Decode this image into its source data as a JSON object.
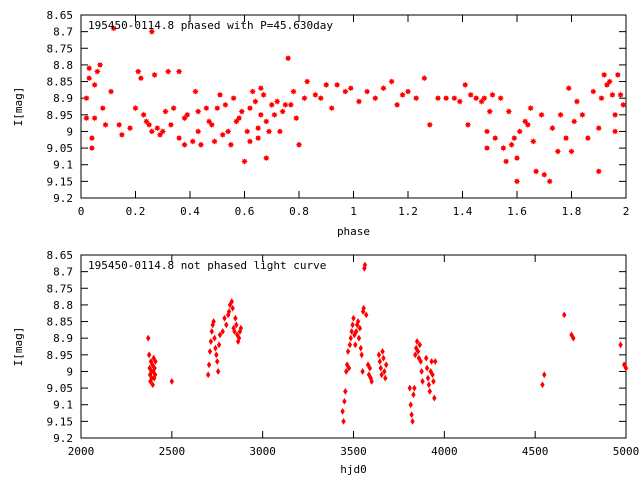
{
  "chart_data": [
    {
      "type": "scatter",
      "title": "195450-0114.8 phased with P=45.630day",
      "xlabel": "phase",
      "ylabel": "I[mag]",
      "xlim": [
        0,
        2
      ],
      "ylim": [
        8.65,
        9.2
      ],
      "y_inverted": true,
      "grid": false,
      "marker": "star",
      "color": "#ff0000",
      "xticks": [
        "0",
        "0.2",
        "0.4",
        "0.6",
        "0.8",
        "1",
        "1.2",
        "1.4",
        "1.6",
        "1.8",
        "2"
      ],
      "xtick_values": [
        0,
        0.2,
        0.4,
        0.6,
        0.8,
        1,
        1.2,
        1.4,
        1.6,
        1.8,
        2
      ],
      "yticks": [
        "8.65",
        "8.7",
        "8.75",
        "8.8",
        "8.85",
        "8.9",
        "8.95",
        "9",
        "9.05",
        "9.1",
        "9.15",
        "9.2"
      ],
      "ytick_values": [
        8.65,
        8.7,
        8.75,
        8.8,
        8.85,
        8.9,
        8.95,
        9.0,
        9.05,
        9.1,
        9.15,
        9.2
      ],
      "points": [
        [
          0.03,
          8.81
        ],
        [
          0.03,
          8.84
        ],
        [
          0.02,
          8.9
        ],
        [
          0.02,
          8.96
        ],
        [
          0.04,
          9.02
        ],
        [
          0.04,
          9.05
        ],
        [
          0.05,
          8.86
        ],
        [
          0.05,
          8.96
        ],
        [
          0.06,
          8.82
        ],
        [
          0.07,
          8.8
        ],
        [
          0.08,
          8.93
        ],
        [
          0.09,
          8.98
        ],
        [
          0.11,
          8.88
        ],
        [
          0.12,
          8.69
        ],
        [
          0.14,
          8.98
        ],
        [
          0.15,
          9.01
        ],
        [
          0.18,
          8.99
        ],
        [
          0.2,
          8.93
        ],
        [
          0.21,
          8.82
        ],
        [
          0.22,
          8.84
        ],
        [
          0.23,
          8.95
        ],
        [
          0.24,
          8.97
        ],
        [
          0.25,
          8.98
        ],
        [
          0.26,
          8.7
        ],
        [
          0.26,
          9.0
        ],
        [
          0.27,
          8.83
        ],
        [
          0.28,
          8.99
        ],
        [
          0.29,
          9.01
        ],
        [
          0.3,
          9.0
        ],
        [
          0.31,
          8.94
        ],
        [
          0.32,
          8.82
        ],
        [
          0.33,
          8.98
        ],
        [
          0.34,
          8.93
        ],
        [
          0.36,
          8.82
        ],
        [
          0.36,
          9.02
        ],
        [
          0.38,
          8.96
        ],
        [
          0.38,
          9.04
        ],
        [
          0.39,
          8.95
        ],
        [
          0.41,
          9.03
        ],
        [
          0.42,
          8.88
        ],
        [
          0.43,
          8.94
        ],
        [
          0.43,
          9.0
        ],
        [
          0.44,
          9.04
        ],
        [
          0.46,
          8.93
        ],
        [
          0.47,
          8.97
        ],
        [
          0.48,
          8.98
        ],
        [
          0.49,
          9.03
        ],
        [
          0.5,
          8.93
        ],
        [
          0.51,
          8.89
        ],
        [
          0.52,
          9.01
        ],
        [
          0.53,
          8.92
        ],
        [
          0.54,
          9.0
        ],
        [
          0.55,
          9.04
        ],
        [
          0.56,
          8.9
        ],
        [
          0.57,
          8.97
        ],
        [
          0.58,
          8.96
        ],
        [
          0.59,
          8.94
        ],
        [
          0.6,
          9.09
        ],
        [
          0.61,
          9.0
        ],
        [
          0.62,
          8.93
        ],
        [
          0.62,
          9.03
        ],
        [
          0.63,
          8.88
        ],
        [
          0.64,
          8.91
        ],
        [
          0.65,
          8.99
        ],
        [
          0.65,
          9.02
        ],
        [
          0.66,
          8.95
        ],
        [
          0.66,
          8.87
        ],
        [
          0.67,
          8.89
        ],
        [
          0.68,
          8.97
        ],
        [
          0.68,
          9.08
        ],
        [
          0.69,
          9.0
        ],
        [
          0.7,
          8.92
        ],
        [
          0.71,
          8.95
        ],
        [
          0.72,
          8.91
        ],
        [
          0.73,
          9.0
        ],
        [
          0.74,
          8.94
        ],
        [
          0.75,
          8.92
        ],
        [
          0.76,
          8.78
        ],
        [
          0.77,
          8.92
        ],
        [
          0.78,
          8.88
        ],
        [
          0.79,
          8.96
        ],
        [
          0.8,
          9.04
        ],
        [
          0.82,
          8.9
        ],
        [
          0.83,
          8.85
        ],
        [
          0.86,
          8.89
        ],
        [
          0.88,
          8.9
        ],
        [
          0.9,
          8.86
        ],
        [
          0.92,
          8.93
        ],
        [
          0.94,
          8.86
        ],
        [
          0.97,
          8.88
        ],
        [
          0.99,
          8.87
        ],
        [
          1.02,
          8.91
        ],
        [
          1.05,
          8.88
        ],
        [
          1.08,
          8.9
        ],
        [
          1.11,
          8.87
        ],
        [
          1.14,
          8.85
        ],
        [
          1.16,
          8.92
        ],
        [
          1.18,
          8.89
        ],
        [
          1.2,
          8.88
        ],
        [
          1.23,
          8.9
        ],
        [
          1.26,
          8.84
        ],
        [
          1.28,
          8.98
        ],
        [
          1.31,
          8.9
        ],
        [
          1.34,
          8.9
        ],
        [
          1.37,
          8.9
        ],
        [
          1.39,
          8.91
        ],
        [
          1.41,
          8.86
        ],
        [
          1.42,
          8.98
        ],
        [
          1.43,
          8.89
        ],
        [
          1.45,
          8.9
        ],
        [
          1.47,
          8.91
        ],
        [
          1.48,
          8.9
        ],
        [
          1.49,
          9.0
        ],
        [
          1.49,
          9.05
        ],
        [
          1.5,
          8.94
        ],
        [
          1.51,
          8.89
        ],
        [
          1.52,
          9.02
        ],
        [
          1.54,
          8.9
        ],
        [
          1.55,
          9.05
        ],
        [
          1.56,
          9.09
        ],
        [
          1.57,
          8.94
        ],
        [
          1.58,
          9.04
        ],
        [
          1.59,
          9.02
        ],
        [
          1.6,
          9.08
        ],
        [
          1.6,
          9.15
        ],
        [
          1.61,
          9.0
        ],
        [
          1.63,
          8.97
        ],
        [
          1.64,
          8.98
        ],
        [
          1.65,
          8.93
        ],
        [
          1.66,
          9.03
        ],
        [
          1.67,
          9.12
        ],
        [
          1.69,
          8.95
        ],
        [
          1.7,
          9.13
        ],
        [
          1.72,
          9.15
        ],
        [
          1.73,
          8.99
        ],
        [
          1.75,
          9.06
        ],
        [
          1.76,
          8.95
        ],
        [
          1.78,
          9.02
        ],
        [
          1.79,
          8.87
        ],
        [
          1.8,
          9.06
        ],
        [
          1.81,
          8.97
        ],
        [
          1.82,
          8.91
        ],
        [
          1.84,
          8.95
        ],
        [
          1.86,
          9.02
        ],
        [
          1.88,
          8.88
        ],
        [
          1.9,
          8.99
        ],
        [
          1.9,
          9.12
        ],
        [
          1.91,
          8.9
        ],
        [
          1.92,
          8.83
        ],
        [
          1.93,
          8.86
        ],
        [
          1.94,
          8.85
        ],
        [
          1.95,
          8.89
        ],
        [
          1.96,
          8.95
        ],
        [
          1.96,
          9.0
        ],
        [
          1.97,
          8.83
        ],
        [
          1.98,
          8.89
        ],
        [
          1.99,
          8.92
        ]
      ]
    },
    {
      "type": "scatter",
      "title": "195450-0114.8 not phased light curve",
      "xlabel": "hjd0",
      "ylabel": "I[mag]",
      "xlim": [
        2000,
        5000
      ],
      "ylim": [
        8.65,
        9.2
      ],
      "y_inverted": true,
      "grid": false,
      "marker": "diamond",
      "color": "#ff0000",
      "xticks": [
        "2000",
        "2500",
        "3000",
        "3500",
        "4000",
        "4500",
        "5000"
      ],
      "xtick_values": [
        2000,
        2500,
        3000,
        3500,
        4000,
        4500,
        5000
      ],
      "yticks": [
        "8.65",
        "8.7",
        "8.75",
        "8.8",
        "8.85",
        "8.9",
        "8.95",
        "9",
        "9.05",
        "9.1",
        "9.15",
        "9.2"
      ],
      "ytick_values": [
        8.65,
        8.7,
        8.75,
        8.8,
        8.85,
        8.9,
        8.95,
        9.0,
        9.05,
        9.1,
        9.15,
        9.2
      ],
      "points": [
        [
          2370,
          8.9
        ],
        [
          2375,
          8.95
        ],
        [
          2378,
          8.99
        ],
        [
          2380,
          9.01
        ],
        [
          2382,
          9.03
        ],
        [
          2385,
          8.97
        ],
        [
          2388,
          9.0
        ],
        [
          2390,
          9.02
        ],
        [
          2393,
          8.98
        ],
        [
          2395,
          9.04
        ],
        [
          2398,
          9.0
        ],
        [
          2400,
          8.96
        ],
        [
          2403,
          9.02
        ],
        [
          2405,
          8.99
        ],
        [
          2408,
          9.01
        ],
        [
          2410,
          8.97
        ],
        [
          2500,
          9.03
        ],
        [
          2700,
          9.01
        ],
        [
          2705,
          8.98
        ],
        [
          2710,
          8.94
        ],
        [
          2715,
          8.91
        ],
        [
          2720,
          8.88
        ],
        [
          2725,
          8.86
        ],
        [
          2730,
          8.85
        ],
        [
          2735,
          8.9
        ],
        [
          2740,
          8.93
        ],
        [
          2745,
          8.95
        ],
        [
          2750,
          8.97
        ],
        [
          2755,
          9.0
        ],
        [
          2760,
          8.92
        ],
        [
          2765,
          8.89
        ],
        [
          2780,
          8.88
        ],
        [
          2790,
          8.84
        ],
        [
          2800,
          8.86
        ],
        [
          2810,
          8.83
        ],
        [
          2815,
          8.82
        ],
        [
          2820,
          8.8
        ],
        [
          2830,
          8.79
        ],
        [
          2835,
          8.81
        ],
        [
          2840,
          8.87
        ],
        [
          2845,
          8.88
        ],
        [
          2850,
          8.84
        ],
        [
          2855,
          8.86
        ],
        [
          2860,
          8.89
        ],
        [
          2865,
          8.91
        ],
        [
          2870,
          8.9
        ],
        [
          2875,
          8.88
        ],
        [
          2880,
          8.87
        ],
        [
          3440,
          9.12
        ],
        [
          3445,
          9.15
        ],
        [
          3450,
          9.09
        ],
        [
          3455,
          9.06
        ],
        [
          3460,
          9.0
        ],
        [
          3465,
          8.98
        ],
        [
          3470,
          8.94
        ],
        [
          3475,
          8.99
        ],
        [
          3480,
          8.92
        ],
        [
          3485,
          8.9
        ],
        [
          3490,
          8.88
        ],
        [
          3495,
          8.86
        ],
        [
          3500,
          8.84
        ],
        [
          3505,
          8.89
        ],
        [
          3510,
          8.92
        ],
        [
          3515,
          8.88
        ],
        [
          3520,
          8.86
        ],
        [
          3525,
          8.85
        ],
        [
          3530,
          8.9
        ],
        [
          3535,
          8.87
        ],
        [
          3540,
          8.93
        ],
        [
          3545,
          8.95
        ],
        [
          3550,
          9.0
        ],
        [
          3553,
          8.82
        ],
        [
          3556,
          8.81
        ],
        [
          3560,
          8.69
        ],
        [
          3563,
          8.68
        ],
        [
          3570,
          8.83
        ],
        [
          3580,
          8.98
        ],
        [
          3585,
          9.01
        ],
        [
          3590,
          8.99
        ],
        [
          3595,
          9.02
        ],
        [
          3600,
          9.03
        ],
        [
          3640,
          8.95
        ],
        [
          3645,
          8.97
        ],
        [
          3650,
          8.99
        ],
        [
          3655,
          9.01
        ],
        [
          3660,
          8.94
        ],
        [
          3665,
          8.96
        ],
        [
          3670,
          9.0
        ],
        [
          3675,
          9.02
        ],
        [
          3680,
          8.98
        ],
        [
          3810,
          9.05
        ],
        [
          3815,
          9.1
        ],
        [
          3820,
          9.13
        ],
        [
          3825,
          9.15
        ],
        [
          3830,
          9.07
        ],
        [
          3835,
          9.05
        ],
        [
          3840,
          8.95
        ],
        [
          3845,
          8.93
        ],
        [
          3850,
          8.91
        ],
        [
          3855,
          8.94
        ],
        [
          3860,
          8.96
        ],
        [
          3865,
          8.92
        ],
        [
          3870,
          8.97
        ],
        [
          3875,
          9.0
        ],
        [
          3880,
          9.03
        ],
        [
          3900,
          8.96
        ],
        [
          3905,
          8.99
        ],
        [
          3910,
          9.02
        ],
        [
          3915,
          9.04
        ],
        [
          3920,
          9.06
        ],
        [
          3925,
          9.0
        ],
        [
          3930,
          8.97
        ],
        [
          3935,
          9.01
        ],
        [
          3940,
          9.03
        ],
        [
          3945,
          9.08
        ],
        [
          3950,
          8.97
        ],
        [
          4540,
          9.04
        ],
        [
          4550,
          9.01
        ],
        [
          4660,
          8.83
        ],
        [
          4700,
          8.89
        ],
        [
          4710,
          8.9
        ],
        [
          4970,
          8.92
        ],
        [
          4990,
          8.98
        ],
        [
          5000,
          8.99
        ]
      ]
    }
  ]
}
